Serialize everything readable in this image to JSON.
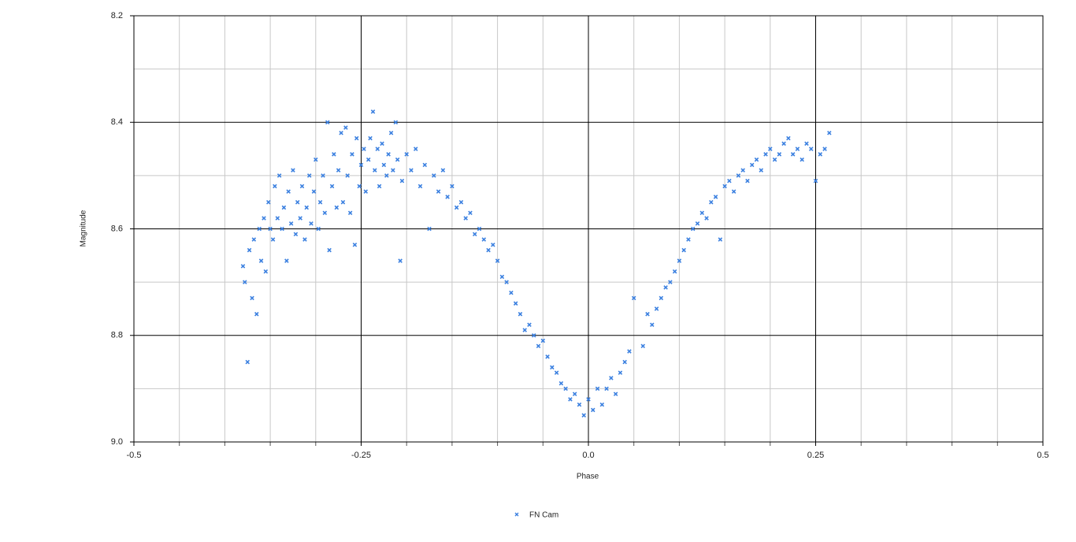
{
  "chart_data": {
    "type": "scatter",
    "x_label": "Phase",
    "y_label": "Magnitude",
    "xlim": [
      -0.5,
      0.5
    ],
    "ylim": [
      9.0,
      8.2
    ],
    "xticks": [
      -0.5,
      -0.25,
      {
        "value": 0,
        "label": "0.0"
      },
      0.25,
      0.5
    ],
    "yticks": [
      {
        "value": 9.0,
        "label": "9.0"
      },
      8.8,
      8.6,
      8.4,
      8.2
    ],
    "xminorticks": [
      -0.45,
      -0.4,
      -0.35,
      -0.3,
      -0.2,
      -0.15,
      -0.1,
      -0.05,
      0.05,
      0.1,
      0.15,
      0.2,
      0.3,
      0.35,
      0.4,
      0.45
    ],
    "yminorticks": [
      8.9,
      8.7,
      8.5,
      8.3
    ],
    "grid": true,
    "legend": "bottom",
    "series": [
      {
        "name": "FN Cam",
        "color": "#3b80e0",
        "x": [
          -0.38,
          -0.378,
          -0.375,
          -0.373,
          -0.37,
          -0.368,
          -0.365,
          -0.362,
          -0.36,
          -0.357,
          -0.355,
          -0.352,
          -0.35,
          -0.347,
          -0.345,
          -0.342,
          -0.34,
          -0.337,
          -0.335,
          -0.332,
          -0.33,
          -0.327,
          -0.325,
          -0.322,
          -0.32,
          -0.317,
          -0.315,
          -0.312,
          -0.31,
          -0.307,
          -0.305,
          -0.302,
          -0.3,
          -0.297,
          -0.295,
          -0.292,
          -0.29,
          -0.287,
          -0.285,
          -0.282,
          -0.28,
          -0.277,
          -0.275,
          -0.272,
          -0.27,
          -0.267,
          -0.265,
          -0.262,
          -0.26,
          -0.257,
          -0.255,
          -0.252,
          -0.25,
          -0.247,
          -0.245,
          -0.242,
          -0.24,
          -0.237,
          -0.235,
          -0.232,
          -0.23,
          -0.227,
          -0.225,
          -0.222,
          -0.22,
          -0.217,
          -0.215,
          -0.212,
          -0.21,
          -0.207,
          -0.205,
          -0.2,
          -0.195,
          -0.19,
          -0.185,
          -0.18,
          -0.175,
          -0.17,
          -0.165,
          -0.16,
          -0.155,
          -0.15,
          -0.145,
          -0.14,
          -0.135,
          -0.13,
          -0.125,
          -0.12,
          -0.115,
          -0.11,
          -0.105,
          -0.1,
          -0.095,
          -0.09,
          -0.085,
          -0.08,
          -0.075,
          -0.07,
          -0.065,
          -0.06,
          -0.055,
          -0.05,
          -0.045,
          -0.04,
          -0.035,
          -0.03,
          -0.025,
          -0.02,
          -0.015,
          -0.01,
          -0.005,
          0.0,
          0.005,
          0.01,
          0.015,
          0.02,
          0.025,
          0.03,
          0.035,
          0.04,
          0.045,
          0.05,
          0.06,
          0.065,
          0.07,
          0.075,
          0.08,
          0.085,
          0.09,
          0.095,
          0.1,
          0.105,
          0.11,
          0.115,
          0.12,
          0.125,
          0.13,
          0.135,
          0.14,
          0.145,
          0.15,
          0.155,
          0.16,
          0.165,
          0.17,
          0.175,
          0.18,
          0.185,
          0.19,
          0.195,
          0.2,
          0.205,
          0.21,
          0.215,
          0.22,
          0.225,
          0.23,
          0.235,
          0.24,
          0.245,
          0.25,
          0.255,
          0.26,
          0.265
        ],
        "values": [
          8.67,
          8.7,
          8.85,
          8.64,
          8.73,
          8.62,
          8.76,
          8.6,
          8.66,
          8.58,
          8.68,
          8.55,
          8.6,
          8.62,
          8.52,
          8.58,
          8.5,
          8.6,
          8.56,
          8.66,
          8.53,
          8.59,
          8.49,
          8.61,
          8.55,
          8.58,
          8.52,
          8.62,
          8.56,
          8.5,
          8.59,
          8.53,
          8.47,
          8.6,
          8.55,
          8.5,
          8.57,
          8.4,
          8.64,
          8.52,
          8.46,
          8.56,
          8.49,
          8.42,
          8.55,
          8.41,
          8.5,
          8.57,
          8.46,
          8.63,
          8.43,
          8.52,
          8.48,
          8.45,
          8.53,
          8.47,
          8.43,
          8.38,
          8.49,
          8.45,
          8.52,
          8.44,
          8.48,
          8.5,
          8.46,
          8.42,
          8.49,
          8.4,
          8.47,
          8.66,
          8.51,
          8.46,
          8.49,
          8.45,
          8.52,
          8.48,
          8.6,
          8.5,
          8.53,
          8.49,
          8.54,
          8.52,
          8.56,
          8.55,
          8.58,
          8.57,
          8.61,
          8.6,
          8.62,
          8.64,
          8.63,
          8.66,
          8.69,
          8.7,
          8.72,
          8.74,
          8.76,
          8.79,
          8.78,
          8.8,
          8.82,
          8.81,
          8.84,
          8.86,
          8.87,
          8.89,
          8.9,
          8.92,
          8.91,
          8.93,
          8.95,
          8.92,
          8.94,
          8.9,
          8.93,
          8.9,
          8.88,
          8.91,
          8.87,
          8.85,
          8.83,
          8.73,
          8.82,
          8.76,
          8.78,
          8.75,
          8.73,
          8.71,
          8.7,
          8.68,
          8.66,
          8.64,
          8.62,
          8.6,
          8.59,
          8.57,
          8.58,
          8.55,
          8.54,
          8.62,
          8.52,
          8.51,
          8.53,
          8.5,
          8.49,
          8.51,
          8.48,
          8.47,
          8.49,
          8.46,
          8.45,
          8.47,
          8.46,
          8.44,
          8.43,
          8.46,
          8.45,
          8.47,
          8.44,
          8.45,
          8.51,
          8.46,
          8.45,
          8.42
        ]
      }
    ]
  }
}
